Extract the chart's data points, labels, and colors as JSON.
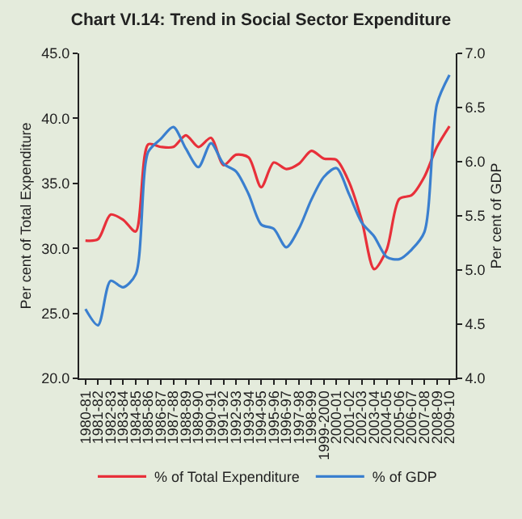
{
  "chart_data": {
    "type": "line",
    "title": "Chart VI.14: Trend in Social Sector Expenditure",
    "categories": [
      "1980-81",
      "1981-82",
      "1982-83",
      "1983-84",
      "1984-85",
      "1985-86",
      "1986-87",
      "1987-88",
      "1988-89",
      "1989-90",
      "1990-91",
      "1991-92",
      "1992-93",
      "1993-94",
      "1994-95",
      "1995-96",
      "1996-97",
      "1997-98",
      "1998-99",
      "1999-2000",
      "2000-01",
      "2001-02",
      "2002-03",
      "2003-04",
      "2004-05",
      "2005-06",
      "2006-07",
      "2007-08",
      "2008-09",
      "2009-10"
    ],
    "series": [
      {
        "name": "% of Total Expenditure",
        "color": "#e8303a",
        "values": [
          30.6,
          30.7,
          32.6,
          32.2,
          31.3,
          38.0,
          37.8,
          37.8,
          38.7,
          37.8,
          38.5,
          36.4,
          37.2,
          37.0,
          34.7,
          36.6,
          36.1,
          36.5,
          37.5,
          36.9,
          36.8,
          35.1,
          32.2,
          28.4,
          29.9,
          33.8,
          34.1,
          35.5,
          37.8,
          39.4
        ]
      },
      {
        "name": "% of GDP",
        "color": "#3a7fcf",
        "axis": "y2",
        "values": [
          4.64,
          4.49,
          4.9,
          4.84,
          4.96,
          6.09,
          6.21,
          6.32,
          6.12,
          5.95,
          6.17,
          5.98,
          5.91,
          5.7,
          5.42,
          5.38,
          5.21,
          5.38,
          5.65,
          5.86,
          5.94,
          5.7,
          5.44,
          5.31,
          5.12,
          5.1,
          5.19,
          5.35,
          6.53,
          6.8
        ]
      }
    ],
    "ylabel": "Per cent of Total Expenditure",
    "y2label": "Per cent of GDP",
    "ylim": [
      20,
      45
    ],
    "yticks": [
      {
        "value": 20,
        "label": "20.0"
      },
      {
        "value": 25,
        "label": "25.0"
      },
      {
        "value": 30,
        "label": "30.0"
      },
      {
        "value": 35,
        "label": "35.0"
      },
      {
        "value": 40,
        "label": "40.0"
      },
      {
        "value": 45,
        "label": "45.0"
      }
    ],
    "y2lim": [
      4,
      7
    ],
    "y2ticks": [
      {
        "value": 4,
        "label": "4.0"
      },
      {
        "value": 4.5,
        "label": "4.5"
      },
      {
        "value": 5,
        "label": "5.0"
      },
      {
        "value": 5.5,
        "label": "5.5"
      },
      {
        "value": 6,
        "label": "6.0"
      },
      {
        "value": 6.5,
        "label": "6.5"
      },
      {
        "value": 7,
        "label": "7.0"
      }
    ],
    "grid": false,
    "legend": "bottom",
    "marker": "none",
    "line_style": "solid"
  }
}
